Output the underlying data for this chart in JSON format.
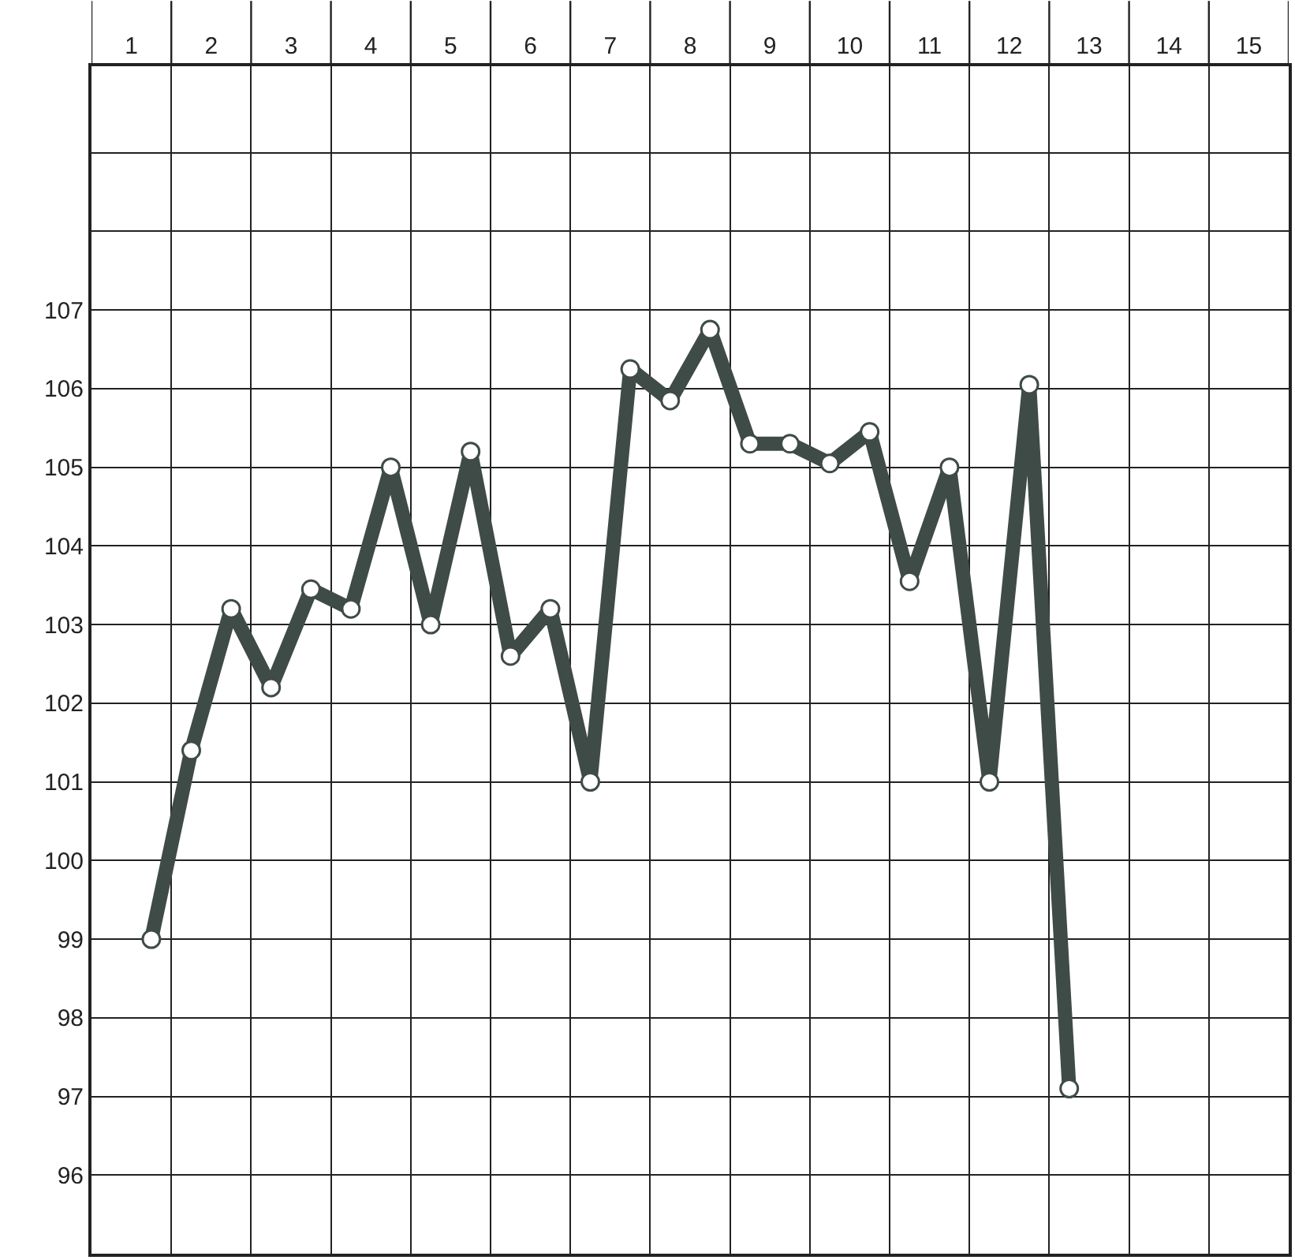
{
  "chart_data": {
    "type": "line",
    "x": [
      1.25,
      1.75,
      2.25,
      2.75,
      3.25,
      3.75,
      4.25,
      4.75,
      5.25,
      5.75,
      6.25,
      6.75,
      7.25,
      7.75,
      8.25,
      8.75,
      9.25,
      9.75,
      10.25,
      10.75,
      11.25,
      11.75,
      12.25,
      12.75
    ],
    "series": [
      {
        "color": "#3f4b47",
        "values": [
          99.0,
          101.4,
          103.2,
          102.2,
          103.45,
          103.2,
          105.0,
          103.0,
          105.2,
          102.6,
          103.2,
          101.0,
          106.25,
          105.85,
          106.75,
          105.3,
          105.3,
          105.05,
          105.45,
          103.55,
          105.0,
          101.0,
          106.05,
          97.1
        ]
      }
    ],
    "xlim": [
      0.5,
      15.5
    ],
    "xticks": [
      {
        "value": 0.5,
        "label": null
      },
      1,
      {
        "value": 1.5,
        "label": null
      },
      2,
      {
        "value": 2.5,
        "label": null
      },
      3,
      {
        "value": 3.5,
        "label": null
      },
      4,
      {
        "value": 4.5,
        "label": null
      },
      5,
      {
        "value": 5.5,
        "label": null
      },
      6,
      {
        "value": 6.5,
        "label": null
      },
      7,
      {
        "value": 7.5,
        "label": null
      },
      8,
      {
        "value": 8.5,
        "label": null
      },
      9,
      {
        "value": 9.5,
        "label": null
      },
      10,
      {
        "value": 10.5,
        "label": null
      },
      11,
      {
        "value": 11.5,
        "label": null
      },
      12,
      {
        "value": 12.5,
        "label": null
      },
      13,
      {
        "value": 13.5,
        "label": null
      },
      14,
      {
        "value": 14.5,
        "label": null
      },
      15,
      {
        "value": 15.5,
        "label": null
      }
    ],
    "ylim": [
      95,
      110.1
    ],
    "yticks": [
      96,
      97,
      98,
      99,
      100,
      101,
      102,
      103,
      104,
      105,
      106,
      107,
      {
        "value": 108,
        "label": null
      },
      {
        "value": 109,
        "label": null
      }
    ],
    "grid": true,
    "marker": "circle",
    "line_style": "solid"
  }
}
